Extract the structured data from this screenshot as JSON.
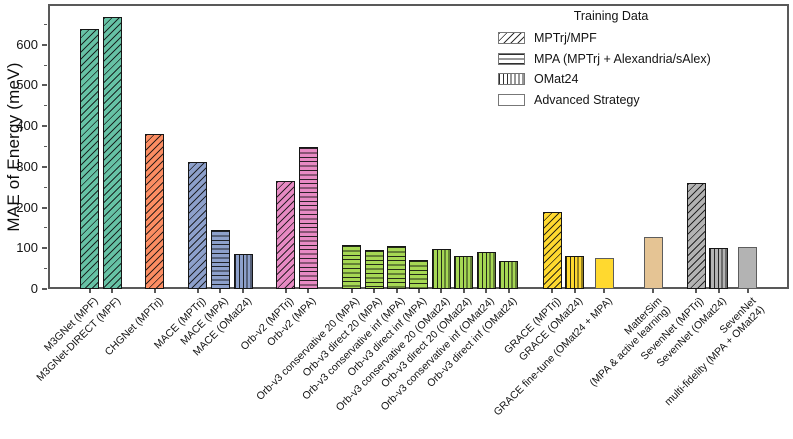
{
  "ylabel_text": "MAE of Energy (meV)",
  "legend": {
    "title": "Training Data",
    "entries": [
      {
        "label": "MPTrj/MPF",
        "hatch": "diagonal"
      },
      {
        "label": "MPA (MPTrj + Alexandria/sAlex)",
        "hatch": "horizontal"
      },
      {
        "label": "OMat24",
        "hatch": "vertical"
      },
      {
        "label": "Advanced Strategy",
        "hatch": "none"
      }
    ]
  },
  "palette": {
    "teal": "#66c2a5",
    "orange": "#fc8d62",
    "blue": "#8da0cb",
    "pink": "#e78ac3",
    "green": "#a6d854",
    "yellow": "#ffd92f",
    "tan": "#e5c494",
    "gray": "#b3b3b3"
  },
  "chart_data": {
    "type": "bar",
    "title": "",
    "xlabel": "",
    "ylabel": "MAE of Energy (meV)",
    "ylim": [
      0,
      700
    ],
    "yticks_major": [
      0,
      100,
      200,
      300,
      400,
      500,
      600
    ],
    "yticks_minor": [
      50,
      150,
      250,
      350,
      450,
      550,
      650
    ],
    "grid": false,
    "legend_position": "upper right",
    "hatch_legend": {
      "diagonal": "MPTrj/MPF",
      "horizontal": "MPA (MPTrj + Alexandria/sAlex)",
      "vertical": "OMat24",
      "none": "Advanced Strategy"
    },
    "bars": [
      {
        "label": "M3GNet (MPF)",
        "value": 638,
        "color": "#66c2a5",
        "hatch": "diagonal",
        "x": 0
      },
      {
        "label": "M3GNet-DIRECT (MPF)",
        "value": 667,
        "color": "#66c2a5",
        "hatch": "diagonal",
        "x": 1
      },
      {
        "label": "CHGNet (MPTrj)",
        "value": 381,
        "color": "#fc8d62",
        "hatch": "diagonal",
        "x": 2.9
      },
      {
        "label": "MACE (MPTrj)",
        "value": 311,
        "color": "#8da0cb",
        "hatch": "diagonal",
        "x": 4.8
      },
      {
        "label": "MACE (MPA)",
        "value": 146,
        "color": "#8da0cb",
        "hatch": "horizontal",
        "x": 5.82
      },
      {
        "label": "MACE (OMat24)",
        "value": 86,
        "color": "#8da0cb",
        "hatch": "vertical",
        "x": 6.84
      },
      {
        "label": "Orb-v2 (MPTrj)",
        "value": 265,
        "color": "#e78ac3",
        "hatch": "diagonal",
        "x": 8.72
      },
      {
        "label": "Orb-v2 (MPA)",
        "value": 350,
        "color": "#e78ac3",
        "hatch": "horizontal",
        "x": 9.74
      },
      {
        "label": "Orb-v3 conservative 20 (MPA)",
        "value": 107,
        "color": "#a6d854",
        "hatch": "horizontal",
        "x": 11.66
      },
      {
        "label": "Orb-v3 direct 20 (MPA)",
        "value": 97,
        "color": "#a6d854",
        "hatch": "horizontal",
        "x": 12.66
      },
      {
        "label": "Orb-v3 conservative inf (MPA)",
        "value": 105,
        "color": "#a6d854",
        "hatch": "horizontal",
        "x": 13.66
      },
      {
        "label": "Orb-v3 direct inf (MPA)",
        "value": 71,
        "color": "#a6d854",
        "hatch": "horizontal",
        "x": 14.66
      },
      {
        "label": "Orb-v3 conservative 20 (OMat24)",
        "value": 98,
        "color": "#a6d854",
        "hatch": "vertical",
        "x": 15.66
      },
      {
        "label": "Orb-v3 direct 20 (OMat24)",
        "value": 82,
        "color": "#a6d854",
        "hatch": "vertical",
        "x": 16.66
      },
      {
        "label": "Orb-v3 conservative inf (OMat24)",
        "value": 91,
        "color": "#a6d854",
        "hatch": "vertical",
        "x": 17.66
      },
      {
        "label": "Orb-v3 direct inf (OMat24)",
        "value": 70,
        "color": "#a6d854",
        "hatch": "vertical",
        "x": 18.66
      },
      {
        "label": "GRACE (MPTrj)",
        "value": 188,
        "color": "#ffd92f",
        "hatch": "diagonal",
        "x": 20.6
      },
      {
        "label": "GRACE (OMat24)",
        "value": 80,
        "color": "#ffd92f",
        "hatch": "vertical",
        "x": 21.6
      },
      {
        "label": "GRACE fine-tune (OMat24 + MPA)",
        "value": 75,
        "color": "#ffd92f",
        "hatch": "none",
        "x": 22.9
      },
      {
        "label": "MatterSim\n(MPA & active learning)",
        "value": 128,
        "color": "#e5c494",
        "hatch": "none",
        "x": 25.1
      },
      {
        "label": "SevenNet (MPTrj)",
        "value": 260,
        "color": "#b3b3b3",
        "hatch": "diagonal",
        "x": 27.0
      },
      {
        "label": "SevenNet (OMat24)",
        "value": 100,
        "color": "#b3b3b3",
        "hatch": "vertical",
        "x": 28.0
      },
      {
        "label": "SevenNet\nmulti-fidelity (MPA + OMat24)",
        "value": 103,
        "color": "#b3b3b3",
        "hatch": "none",
        "x": 29.3
      }
    ]
  }
}
